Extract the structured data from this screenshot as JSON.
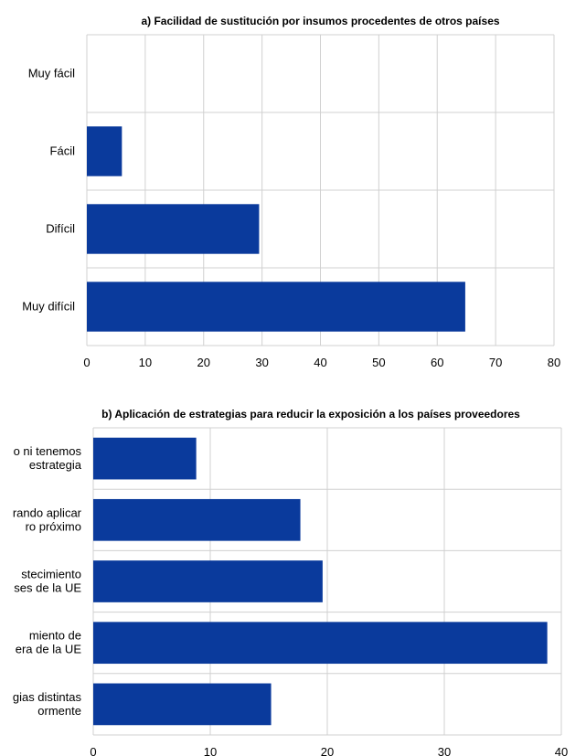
{
  "colors": {
    "bar": "#0a3a9c",
    "grid": "#d0d0d0",
    "text": "#000000"
  },
  "chart_data": [
    {
      "type": "bar",
      "orientation": "horizontal",
      "title": "a) Facilidad de sustitución por insumos procedentes de otros países",
      "categories": [
        "Muy fácil",
        "Fácil",
        "Difícil",
        "Muy difícil"
      ],
      "values": [
        0,
        6,
        29.5,
        64.8
      ],
      "xlim": [
        0,
        80
      ],
      "ticks": [
        0,
        10,
        20,
        30,
        40,
        50,
        60,
        70,
        80
      ],
      "grid": true,
      "legend": "none"
    },
    {
      "type": "bar",
      "orientation": "horizontal",
      "title": "b) Aplicación de estrategias para reducir la exposición a los países proveedores",
      "categories": [
        [
          "o ni tenemos",
          "estrategia"
        ],
        [
          "rando aplicar",
          "ro próximo"
        ],
        [
          "stecimiento",
          "ses de la UE"
        ],
        [
          "miento de",
          "era de la UE"
        ],
        [
          "gias distintas",
          "ormente"
        ]
      ],
      "values": [
        8.8,
        17.7,
        19.6,
        38.8,
        15.2
      ],
      "xlim": [
        0,
        40
      ],
      "ticks": [
        0,
        10,
        20,
        30,
        40
      ],
      "grid": true,
      "legend": "none"
    }
  ]
}
